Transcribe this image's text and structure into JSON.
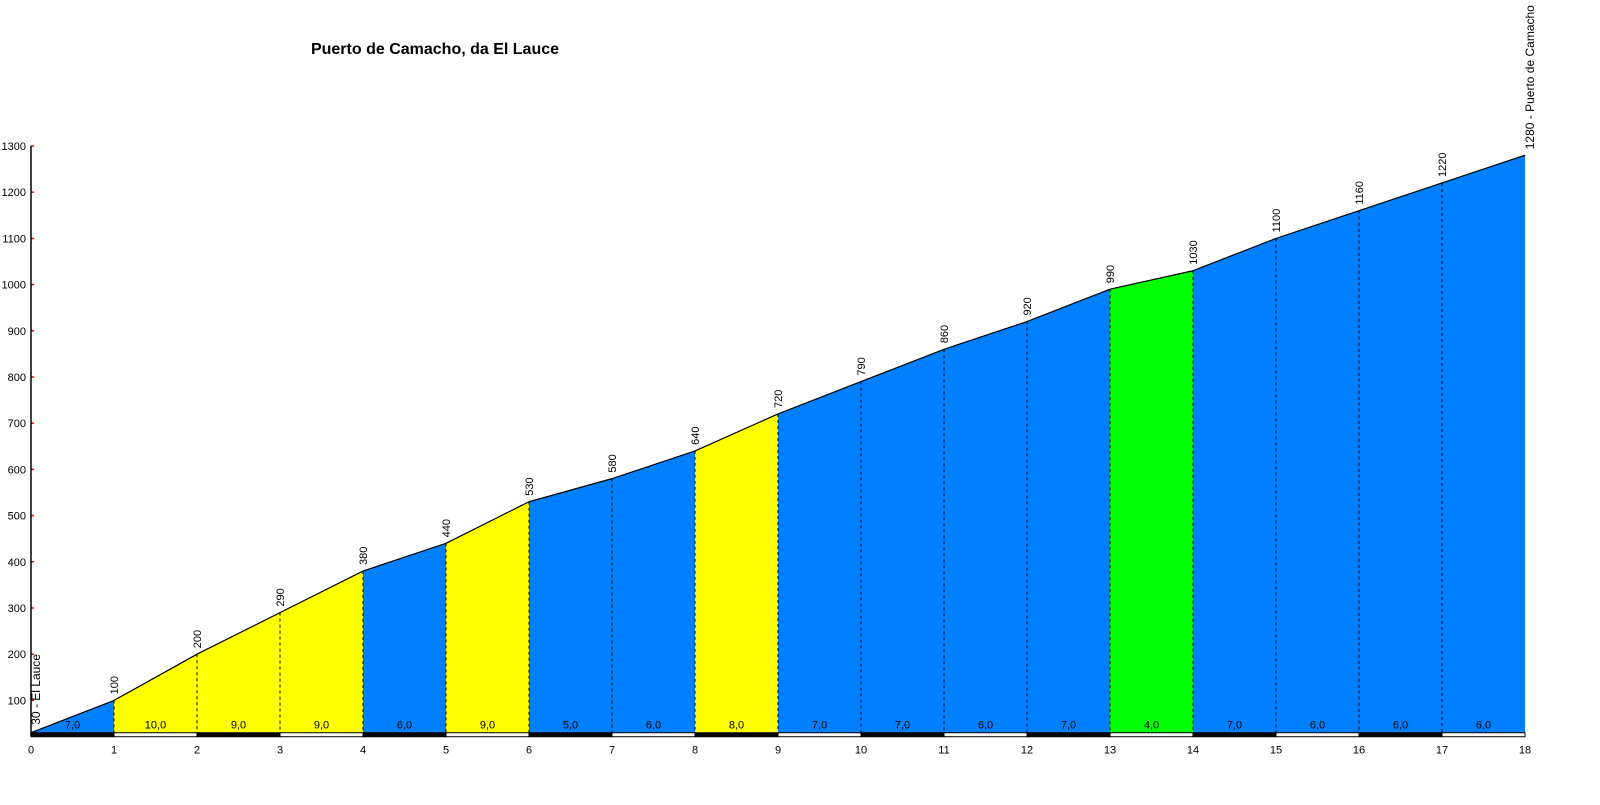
{
  "chart_data": {
    "type": "area",
    "title": "Puerto de Camacho, da El Lauce",
    "start_label": "30 - El Lauce",
    "end_label": "1280 - Puerto de Camacho",
    "x": [
      0,
      1,
      2,
      3,
      4,
      5,
      6,
      7,
      8,
      9,
      10,
      11,
      12,
      13,
      14,
      15,
      16,
      17,
      18
    ],
    "elevations": [
      30,
      100,
      200,
      290,
      380,
      440,
      530,
      580,
      640,
      720,
      790,
      860,
      920,
      990,
      1030,
      1100,
      1160,
      1220,
      1280
    ],
    "gradient_labels": [
      "7,0",
      "10,0",
      "9,0",
      "9,0",
      "6,0",
      "9,0",
      "5,0",
      "6,0",
      "8,0",
      "7,0",
      "7,0",
      "6,0",
      "7,0",
      "4,0",
      "7,0",
      "6,0",
      "6,0",
      "6,0"
    ],
    "gradients": [
      7,
      10,
      9,
      9,
      6,
      9,
      5,
      6,
      8,
      7,
      7,
      6,
      7,
      4,
      7,
      6,
      6,
      6
    ],
    "xlim": [
      0,
      18
    ],
    "ylim": [
      30,
      1300
    ],
    "y_ticks": [
      100,
      200,
      300,
      400,
      500,
      600,
      700,
      800,
      900,
      1000,
      1100,
      1200,
      1300
    ],
    "x_ticks": [
      0,
      1,
      2,
      3,
      4,
      5,
      6,
      7,
      8,
      9,
      10,
      11,
      12,
      13,
      14,
      15,
      16,
      17,
      18
    ],
    "grid": false,
    "colors": {
      "easy": "#00ff00",
      "moderate": "#0080ff",
      "hard": "#ffff00",
      "tick": "#ff0000"
    }
  }
}
